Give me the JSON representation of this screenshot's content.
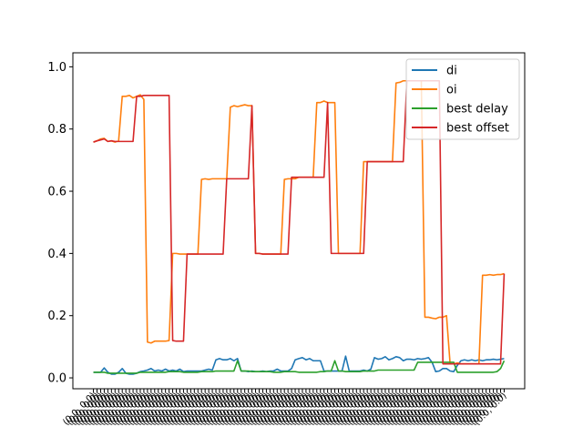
{
  "chart_data": {
    "type": "line",
    "title": "",
    "xlabel": "",
    "ylabel": "",
    "ylim": [
      -0.035,
      1.045
    ],
    "xlim": [
      -5.7,
      119.7
    ],
    "yticks": [
      0.0,
      0.2,
      0.4,
      0.6,
      0.8,
      1.0
    ],
    "ytick_labels": [
      "0.0",
      "0.2",
      "0.4",
      "0.6",
      "0.8",
      "1.0"
    ],
    "grid": false,
    "legend": {
      "placement": "top-right"
    },
    "x_tick_label_text": "(0.0, 0.0)",
    "x_count": 115,
    "series": [
      {
        "name": "di",
        "color": "#1f77b4",
        "values": [
          0.018,
          0.018,
          0.018,
          0.032,
          0.018,
          0.012,
          0.012,
          0.018,
          0.03,
          0.015,
          0.012,
          0.012,
          0.015,
          0.02,
          0.022,
          0.025,
          0.03,
          0.022,
          0.025,
          0.022,
          0.028,
          0.022,
          0.025,
          0.022,
          0.028,
          0.02,
          0.022,
          0.022,
          0.022,
          0.022,
          0.022,
          0.025,
          0.028,
          0.025,
          0.058,
          0.062,
          0.058,
          0.058,
          0.062,
          0.055,
          0.062,
          0.022,
          0.022,
          0.02,
          0.022,
          0.02,
          0.02,
          0.022,
          0.02,
          0.022,
          0.022,
          0.028,
          0.022,
          0.022,
          0.022,
          0.03,
          0.058,
          0.062,
          0.065,
          0.058,
          0.062,
          0.055,
          0.055,
          0.055,
          0.022,
          0.022,
          0.022,
          0.022,
          0.022,
          0.022,
          0.07,
          0.022,
          0.022,
          0.022,
          0.022,
          0.025,
          0.022,
          0.028,
          0.065,
          0.06,
          0.062,
          0.068,
          0.058,
          0.062,
          0.068,
          0.065,
          0.055,
          0.06,
          0.06,
          0.058,
          0.062,
          0.06,
          0.062,
          0.065,
          0.05,
          0.02,
          0.022,
          0.03,
          0.03,
          0.022,
          0.02,
          0.04,
          0.055,
          0.058,
          0.055,
          0.058,
          0.055,
          0.058,
          0.055,
          0.058,
          0.058,
          0.06,
          0.058,
          0.06,
          0.062
        ]
      },
      {
        "name": "oi",
        "color": "#ff7f0e",
        "values": [
          0.758,
          0.762,
          0.768,
          0.77,
          0.76,
          0.762,
          0.758,
          0.762,
          0.905,
          0.905,
          0.908,
          0.9,
          0.905,
          0.91,
          0.895,
          0.115,
          0.112,
          0.118,
          0.118,
          0.118,
          0.118,
          0.12,
          0.4,
          0.4,
          0.398,
          0.398,
          0.398,
          0.398,
          0.398,
          0.398,
          0.638,
          0.64,
          0.638,
          0.64,
          0.64,
          0.64,
          0.64,
          0.64,
          0.87,
          0.875,
          0.872,
          0.875,
          0.878,
          0.875,
          0.875,
          0.4,
          0.4,
          0.398,
          0.398,
          0.398,
          0.398,
          0.398,
          0.398,
          0.638,
          0.64,
          0.64,
          0.64,
          0.645,
          0.645,
          0.645,
          0.645,
          0.645,
          0.885,
          0.885,
          0.89,
          0.885,
          0.885,
          0.885,
          0.4,
          0.4,
          0.4,
          0.4,
          0.4,
          0.4,
          0.4,
          0.695,
          0.695,
          0.695,
          0.695,
          0.695,
          0.695,
          0.695,
          0.695,
          0.695,
          0.948,
          0.95,
          0.955,
          0.955,
          0.955,
          0.955,
          0.955,
          0.955,
          0.195,
          0.195,
          0.192,
          0.19,
          0.195,
          0.195,
          0.2,
          0.045,
          0.045,
          0.048,
          0.045,
          0.045,
          0.045,
          0.045,
          0.045,
          0.045,
          0.33,
          0.33,
          0.332,
          0.33,
          0.332,
          0.332,
          0.335
        ]
      },
      {
        "name": "best delay",
        "color": "#2ca02c",
        "values": [
          0.018,
          0.018,
          0.018,
          0.018,
          0.015,
          0.015,
          0.015,
          0.015,
          0.015,
          0.015,
          0.015,
          0.015,
          0.015,
          0.018,
          0.018,
          0.018,
          0.018,
          0.018,
          0.018,
          0.018,
          0.018,
          0.02,
          0.02,
          0.02,
          0.02,
          0.018,
          0.018,
          0.018,
          0.018,
          0.018,
          0.02,
          0.02,
          0.02,
          0.02,
          0.022,
          0.022,
          0.022,
          0.022,
          0.022,
          0.022,
          0.055,
          0.022,
          0.022,
          0.022,
          0.02,
          0.02,
          0.02,
          0.02,
          0.02,
          0.02,
          0.018,
          0.018,
          0.018,
          0.02,
          0.02,
          0.02,
          0.02,
          0.018,
          0.018,
          0.018,
          0.018,
          0.018,
          0.018,
          0.02,
          0.02,
          0.022,
          0.022,
          0.055,
          0.022,
          0.022,
          0.02,
          0.02,
          0.02,
          0.02,
          0.02,
          0.022,
          0.022,
          0.022,
          0.022,
          0.025,
          0.025,
          0.025,
          0.025,
          0.025,
          0.025,
          0.025,
          0.025,
          0.025,
          0.025,
          0.025,
          0.05,
          0.05,
          0.05,
          0.05,
          0.05,
          0.05,
          0.05,
          0.05,
          0.05,
          0.05,
          0.05,
          0.018,
          0.018,
          0.018,
          0.018,
          0.018,
          0.018,
          0.018,
          0.018,
          0.018,
          0.018,
          0.018,
          0.02,
          0.03,
          0.055
        ]
      },
      {
        "name": "best offset",
        "color": "#d62728",
        "values": [
          0.758,
          0.762,
          0.765,
          0.768,
          0.76,
          0.762,
          0.76,
          0.76,
          0.76,
          0.76,
          0.76,
          0.76,
          0.905,
          0.905,
          0.908,
          0.908,
          0.908,
          0.908,
          0.908,
          0.908,
          0.908,
          0.908,
          0.12,
          0.118,
          0.118,
          0.118,
          0.398,
          0.398,
          0.398,
          0.398,
          0.398,
          0.398,
          0.398,
          0.398,
          0.398,
          0.398,
          0.398,
          0.64,
          0.64,
          0.64,
          0.64,
          0.64,
          0.64,
          0.64,
          0.875,
          0.4,
          0.4,
          0.398,
          0.398,
          0.398,
          0.398,
          0.398,
          0.398,
          0.398,
          0.398,
          0.645,
          0.645,
          0.645,
          0.645,
          0.645,
          0.645,
          0.645,
          0.645,
          0.645,
          0.645,
          0.885,
          0.4,
          0.4,
          0.4,
          0.4,
          0.4,
          0.4,
          0.4,
          0.4,
          0.4,
          0.4,
          0.695,
          0.695,
          0.695,
          0.695,
          0.695,
          0.695,
          0.695,
          0.695,
          0.695,
          0.695,
          0.695,
          0.955,
          0.955,
          0.955,
          0.955,
          0.955,
          0.955,
          0.955,
          0.955,
          0.955,
          0.955,
          0.045,
          0.045,
          0.045,
          0.045,
          0.045,
          0.045,
          0.045,
          0.045,
          0.045,
          0.045,
          0.045,
          0.045,
          0.045,
          0.045,
          0.045,
          0.045,
          0.045,
          0.335
        ]
      }
    ]
  }
}
